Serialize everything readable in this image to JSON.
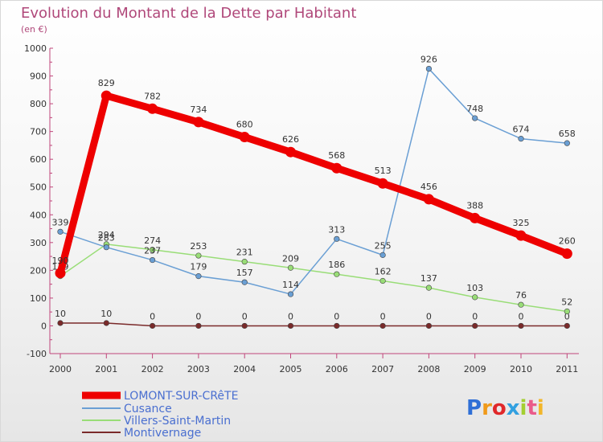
{
  "chart_data": {
    "type": "line",
    "title": "Evolution du Montant de la Dette par Habitant",
    "subtitle": "(en €)",
    "x": [
      "2000",
      "2001",
      "2002",
      "2003",
      "2004",
      "2005",
      "2006",
      "2007",
      "2008",
      "2009",
      "2010",
      "2011"
    ],
    "ylim": [
      -100,
      1000
    ],
    "yticks": [
      -100,
      0,
      100,
      200,
      300,
      400,
      500,
      600,
      700,
      800,
      900,
      1000
    ],
    "grid": false,
    "legend_position": "bottom-left",
    "series": [
      {
        "name": "LOMONT-SUR-CRêTE",
        "color": "#ee0000",
        "width": 9,
        "values": [
          190,
          829,
          782,
          734,
          680,
          626,
          568,
          513,
          456,
          388,
          325,
          260
        ],
        "labels": [
          "190",
          "829",
          "782",
          "734",
          "680",
          "626",
          "568",
          "513",
          "456",
          "388",
          "325",
          "260"
        ]
      },
      {
        "name": "Cusance",
        "color": "#6a9fd4",
        "width": 1.5,
        "values": [
          339,
          283,
          237,
          179,
          157,
          114,
          313,
          255,
          926,
          748,
          674,
          658
        ],
        "labels": [
          "339",
          "283",
          "237",
          "179",
          "157",
          "114",
          "313",
          "255",
          "926",
          "748",
          "674",
          "658"
        ]
      },
      {
        "name": "Villers-Saint-Martin",
        "color": "#99dd77",
        "width": 1.5,
        "values": [
          179,
          294,
          274,
          253,
          231,
          209,
          186,
          162,
          137,
          103,
          76,
          52
        ],
        "labels": [
          "179",
          "294",
          "274",
          "253",
          "231",
          "209",
          "186",
          "162",
          "137",
          "103",
          "76",
          "52"
        ]
      },
      {
        "name": "Montivernage",
        "color": "#7a2a2a",
        "width": 1.5,
        "values": [
          10,
          10,
          0,
          0,
          0,
          0,
          0,
          0,
          0,
          0,
          0,
          0
        ],
        "labels": [
          "10",
          "10",
          "0",
          "0",
          "0",
          "0",
          "0",
          "0",
          "0",
          "0",
          "0",
          "0"
        ]
      }
    ]
  },
  "logo": {
    "text": "Proxiti",
    "letter_colors": [
      "#2f6fd6",
      "#f09a1a",
      "#e0282a",
      "#32a0e0",
      "#a4cf32",
      "#ea5a8a",
      "#f2b62a"
    ]
  }
}
